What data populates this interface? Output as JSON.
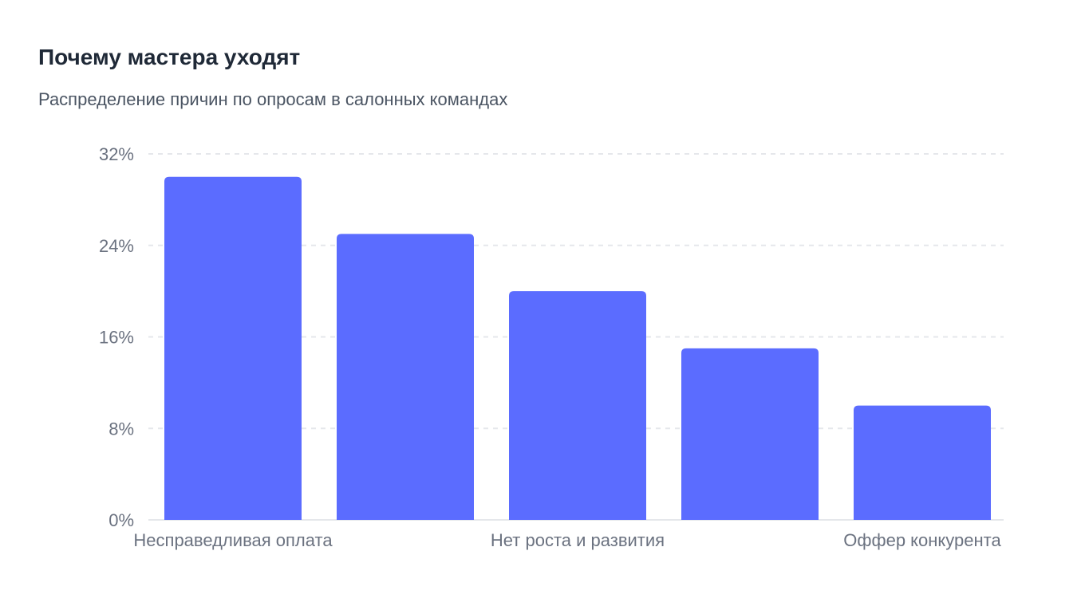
{
  "header": {
    "title": "Почему мастера уходят",
    "subtitle": "Распределение причин по опросам в салонных командах"
  },
  "colors": {
    "bar": "#5b6cff",
    "grid": "#e5e7eb",
    "text": "#1f2937",
    "muted": "#6b7280"
  },
  "chart_data": {
    "type": "bar",
    "title": "Почему мастера уходят",
    "subtitle": "Распределение причин по опросам в салонных командах",
    "categories": [
      "Несправедливая оплата",
      "",
      "Нет роста и развития",
      "",
      "Оффер конкурента"
    ],
    "values": [
      30,
      25,
      20,
      15,
      10
    ],
    "ylim": [
      0,
      32
    ],
    "yticks": [
      0,
      8,
      16,
      24,
      32
    ],
    "ytick_labels": [
      "0%",
      "8%",
      "16%",
      "24%",
      "32%"
    ],
    "grid": true,
    "legend": "none"
  }
}
